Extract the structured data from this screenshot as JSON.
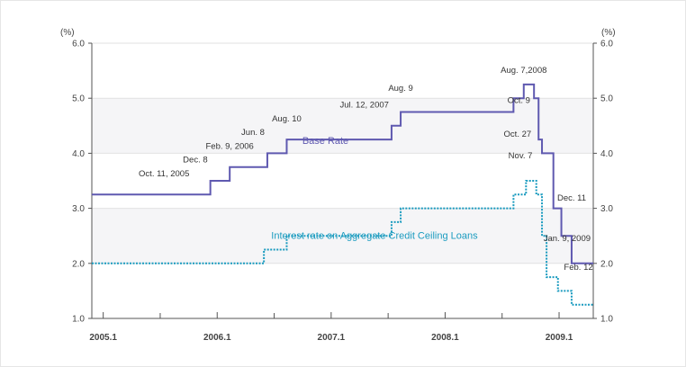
{
  "chart_data": {
    "type": "line",
    "y_unit_left": "(%)",
    "y_unit_right": "(%)",
    "ylim": [
      1.0,
      6.0
    ],
    "y_ticks": [
      "1.0",
      "2.0",
      "3.0",
      "4.0",
      "5.0",
      "6.0"
    ],
    "x_ticks": [
      {
        "label": "2005.1",
        "x": 2005.0
      },
      {
        "label": "2006.1",
        "x": 2006.0
      },
      {
        "label": "2007.1",
        "x": 2007.0
      },
      {
        "label": "2008.1",
        "x": 2008.0
      },
      {
        "label": "2009.1",
        "x": 2009.0
      }
    ],
    "xlim": [
      2004.9,
      2009.3
    ],
    "minor_x_ticks": [
      2005.5,
      2006.5,
      2007.5,
      2008.5
    ],
    "shaded_bands": [
      [
        2.0,
        3.0
      ],
      [
        4.0,
        5.0
      ]
    ],
    "series": [
      {
        "name": "Base Rate",
        "style": "solid",
        "color": "#5f59b0",
        "x": [
          2004.9,
          2005.78,
          2005.94,
          2006.11,
          2006.44,
          2006.61,
          2007.53,
          2007.61,
          2008.6,
          2008.69,
          2008.78,
          2008.82,
          2008.85,
          2008.95,
          2009.02,
          2009.11,
          2009.3
        ],
        "values": [
          3.25,
          3.25,
          3.5,
          3.75,
          4.0,
          4.25,
          4.5,
          4.75,
          5.0,
          5.25,
          5.0,
          4.25,
          4.0,
          3.0,
          2.5,
          2.0,
          2.0
        ]
      },
      {
        "name": "Interest rate on Aggregate Credit Ceiling Loans",
        "style": "dotted",
        "color": "#1a9bbf",
        "x": [
          2004.9,
          2006.08,
          2006.41,
          2006.61,
          2007.53,
          2007.61,
          2008.6,
          2008.71,
          2008.8,
          2008.85,
          2008.89,
          2008.99,
          2009.11,
          2009.3
        ],
        "values": [
          2.0,
          2.0,
          2.25,
          2.5,
          2.75,
          3.0,
          3.25,
          3.5,
          3.25,
          2.5,
          1.75,
          1.5,
          1.25,
          1.25
        ]
      }
    ],
    "annotations": [
      {
        "text": "Oct. 11, 2005",
        "x": 2005.78,
        "y": 3.5,
        "anchor": "end",
        "series": 0
      },
      {
        "text": "Dec. 8",
        "x": 2005.94,
        "y": 3.75,
        "anchor": "end",
        "series": 0
      },
      {
        "text": "Feb. 9, 2006",
        "x": 2006.11,
        "y": 4.0,
        "anchor": "middle",
        "series": 0
      },
      {
        "text": "Jun. 8",
        "x": 2006.44,
        "y": 4.25,
        "anchor": "end",
        "series": 0
      },
      {
        "text": "Aug. 10",
        "x": 2006.61,
        "y": 4.5,
        "anchor": "middle",
        "series": 0
      },
      {
        "text": "Jul. 12, 2007",
        "x": 2007.53,
        "y": 4.75,
        "anchor": "end",
        "series": 0
      },
      {
        "text": "Aug. 9",
        "x": 2007.61,
        "y": 5.05,
        "anchor": "middle",
        "series": 0
      },
      {
        "text": "Aug. 7,2008",
        "x": 2008.69,
        "y": 5.38,
        "anchor": "middle",
        "series": 0
      },
      {
        "text": "Oct. 9",
        "x": 2008.77,
        "y": 4.83,
        "anchor": "end",
        "series": 0
      },
      {
        "text": "Oct. 27",
        "x": 2008.78,
        "y": 4.22,
        "anchor": "end",
        "series": 0
      },
      {
        "text": "Nov. 7",
        "x": 2008.79,
        "y": 3.83,
        "anchor": "end",
        "series": 0
      },
      {
        "text": "Dec. 11",
        "x": 2008.96,
        "y": 3.06,
        "anchor": "start",
        "series": 0
      },
      {
        "text": "Jan. 9, 2009",
        "x": 2009.07,
        "y": 2.32,
        "anchor": "middle",
        "series": 0
      },
      {
        "text": "Feb. 12",
        "x": 2009.17,
        "y": 1.8,
        "anchor": "middle",
        "series": 0
      }
    ],
    "series_labels": [
      {
        "text": "Base Rate",
        "x": 2006.95,
        "y": 4.17,
        "anchor": "middle",
        "series": 0
      },
      {
        "text": "Interest rate on Aggregate Credit Ceiling Loans",
        "x": 2007.38,
        "y": 2.45,
        "anchor": "middle",
        "series": 1
      }
    ],
    "colors": {
      "axis": "#555555",
      "grid": "#e2e2e2",
      "band": "#f5f5f7",
      "tick_label": "#444444",
      "annotation": "#333333"
    }
  }
}
